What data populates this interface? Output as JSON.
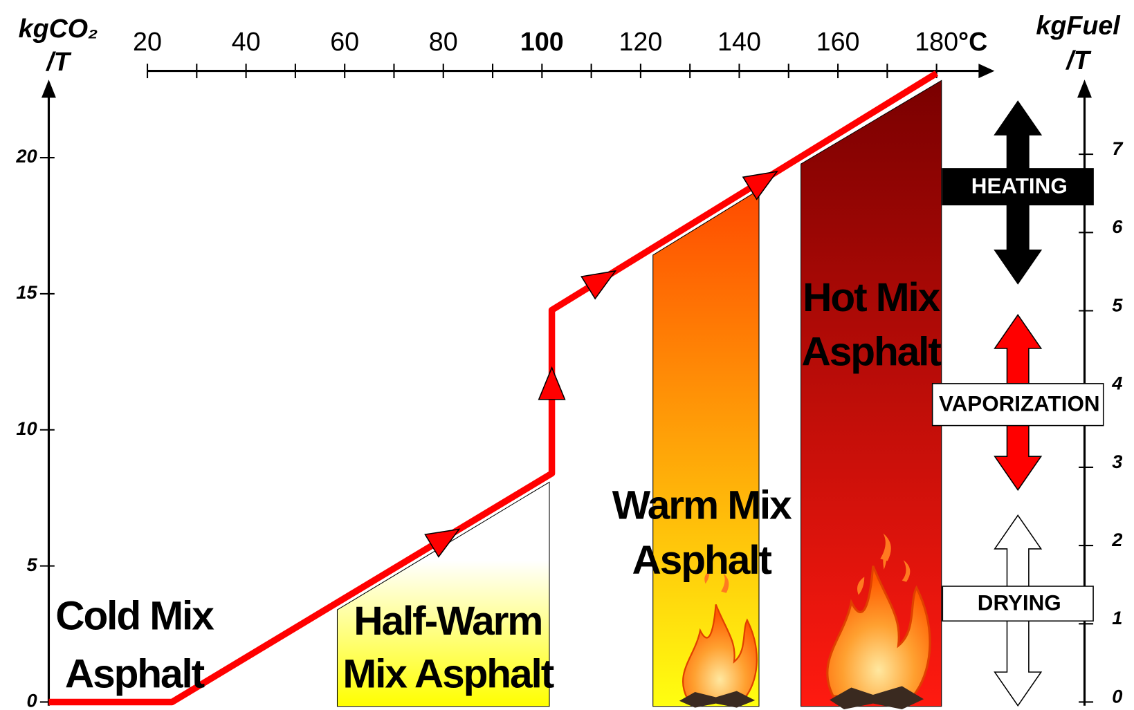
{
  "chart_data": {
    "type": "line",
    "xlabel": "°C",
    "ylabel": [
      "kgCO₂",
      "/T"
    ],
    "y2label": [
      "kgFuel",
      "/T"
    ],
    "x": [
      0,
      25,
      102,
      102,
      180
    ],
    "series": [
      {
        "color": "#ff0000",
        "values": [
          0,
          0,
          8.4,
          14.4,
          23.1
        ]
      }
    ],
    "xlim": [
      0,
      210
    ],
    "xticks": [
      20,
      40,
      60,
      80,
      100,
      120,
      140,
      160,
      180
    ],
    "xminor_ticks": [
      30,
      50,
      70,
      90,
      110,
      130,
      150,
      170
    ],
    "bold_xticks": [
      100
    ],
    "ylim": [
      0,
      23
    ],
    "yticks": [
      0,
      5,
      10,
      15,
      20
    ],
    "y2lim": [
      0,
      8
    ],
    "y2ticks": [
      0,
      1,
      2,
      3,
      4,
      5,
      6,
      7
    ],
    "regions": [
      {
        "label": [
          "Cold Mix",
          "Asphalt"
        ]
      },
      {
        "label": [
          "Half-Warm",
          "Mix Asphalt"
        ],
        "x": [
          58.5,
          101.5
        ],
        "colors": [
          "#ffffff",
          "#ffff00"
        ]
      },
      {
        "label": [
          "Warm Mix",
          "Asphalt"
        ],
        "x": [
          122.5,
          144
        ],
        "colors": [
          "#ff4a00",
          "#ffff10"
        ]
      },
      {
        "label": [
          "Hot Mix",
          "Asphalt"
        ],
        "x": [
          152.5,
          181
        ],
        "colors": [
          "#7a0000",
          "#ff1a10"
        ]
      }
    ],
    "phases": [
      {
        "label": "HEATING",
        "color": "#000000"
      },
      {
        "label": "VAPORIZATION",
        "color": "#ff0000"
      },
      {
        "label": "DRYING",
        "color": "#ffffff"
      }
    ]
  }
}
